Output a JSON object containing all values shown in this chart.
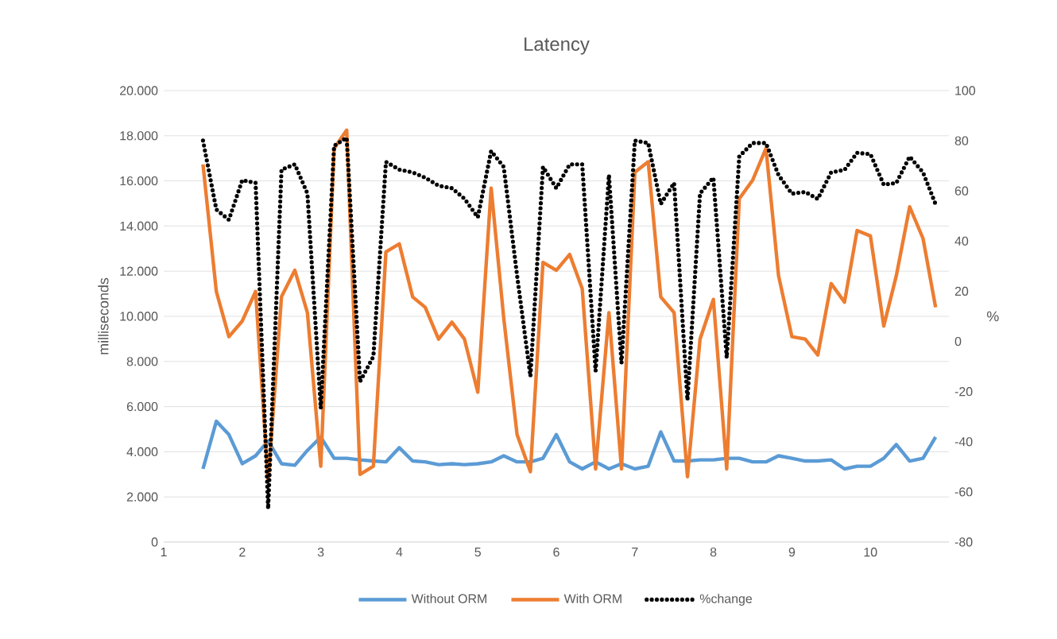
{
  "chart_data": {
    "type": "line",
    "title": "Latency",
    "ylabel": "milliseconds",
    "y2label": "%",
    "x": [
      1.5,
      1.67,
      1.83,
      2,
      2.17,
      2.33,
      2.5,
      2.67,
      2.83,
      3,
      3.17,
      3.33,
      3.5,
      3.67,
      3.83,
      4,
      4.17,
      4.33,
      4.5,
      4.67,
      4.83,
      5,
      5.17,
      5.33,
      5.5,
      5.67,
      5.83,
      6,
      6.17,
      6.33,
      6.5,
      6.67,
      6.83,
      7,
      7.17,
      7.33,
      7.5,
      7.67,
      7.83,
      8,
      8.17,
      8.33,
      8.5,
      8.67,
      8.83,
      9,
      9.17,
      9.33,
      9.5,
      9.67,
      9.83,
      10,
      10.17,
      10.33,
      10.5,
      10.67,
      10.83
    ],
    "series": [
      {
        "name": "Without ORM",
        "color": "#5b9bd5",
        "values": [
          3240,
          5350,
          4760,
          3470,
          3820,
          4480,
          3470,
          3400,
          4060,
          4650,
          3710,
          3710,
          3640,
          3590,
          3550,
          4180,
          3590,
          3550,
          3430,
          3470,
          3430,
          3470,
          3550,
          3820,
          3550,
          3550,
          3710,
          4760,
          3550,
          3240,
          3550,
          3240,
          3470,
          3240,
          3360,
          4880,
          3590,
          3590,
          3640,
          3640,
          3710,
          3710,
          3550,
          3550,
          3820,
          3710,
          3590,
          3590,
          3640,
          3240,
          3360,
          3360,
          3710,
          4320,
          3590,
          3710,
          4650
        ]
      },
      {
        "name": "With ORM",
        "color": "#ed7d31",
        "values": [
          16730,
          11100,
          9100,
          9790,
          11100,
          2700,
          10870,
          12040,
          10160,
          3360,
          17440,
          18250,
          3000,
          3360,
          12860,
          13210,
          10860,
          10400,
          8990,
          9740,
          8990,
          6640,
          15680,
          9930,
          4760,
          3120,
          12390,
          12040,
          12740,
          11220,
          3240,
          10160,
          3240,
          16380,
          16850,
          10860,
          10160,
          2890,
          8990,
          10750,
          3240,
          15210,
          16030,
          17440,
          11800,
          9100,
          8990,
          8290,
          11450,
          10630,
          13800,
          13560,
          9570,
          11800,
          14850,
          13450,
          10400
        ]
      },
      {
        "name": "%change",
        "color": "#000000",
        "axis": "y2",
        "line_style": "dotted",
        "values": [
          80.1,
          52.6,
          48.5,
          64.3,
          63.2,
          -66.7,
          68.5,
          70.6,
          59.0,
          -26.6,
          78.0,
          81.2,
          -16,
          -6,
          71.6,
          68.5,
          67.4,
          65.3,
          62.1,
          61.1,
          56.9,
          49.5,
          75.9,
          69.6,
          26.3,
          -13.9,
          69.6,
          61.1,
          70.6,
          70.6,
          -11.8,
          66.4,
          -8.6,
          80.1,
          79.1,
          54.8,
          63.2,
          -23.4,
          59.0,
          65.3,
          -6.5,
          73.8,
          79.1,
          79.1,
          66.3,
          58.9,
          59.6,
          56.8,
          67.4,
          68.4,
          75.2,
          74.7,
          62.5,
          63.2,
          73.7,
          67.4,
          54.7
        ]
      }
    ],
    "xlim": [
      1,
      11
    ],
    "xticks": [
      1,
      2,
      3,
      4,
      5,
      6,
      7,
      8,
      9,
      10
    ],
    "ylim": [
      0,
      20000
    ],
    "yticks": [
      0,
      {
        "value": 2000,
        "label": "2.000"
      },
      {
        "value": 4000,
        "label": "4.000"
      },
      {
        "value": 6000,
        "label": "6.000"
      },
      {
        "value": 8000,
        "label": "8.000"
      },
      {
        "value": 10000,
        "label": "10.000"
      },
      {
        "value": 12000,
        "label": "12.000"
      },
      {
        "value": 14000,
        "label": "14.000"
      },
      {
        "value": 16000,
        "label": "16.000"
      },
      {
        "value": 18000,
        "label": "18.000"
      },
      {
        "value": 20000,
        "label": "20.000"
      }
    ],
    "y2lim": [
      -80,
      100
    ],
    "y2ticks": [
      -80,
      -60,
      -40,
      -20,
      0,
      20,
      40,
      60,
      80,
      100
    ],
    "grid": "y",
    "legend": "bottom"
  }
}
